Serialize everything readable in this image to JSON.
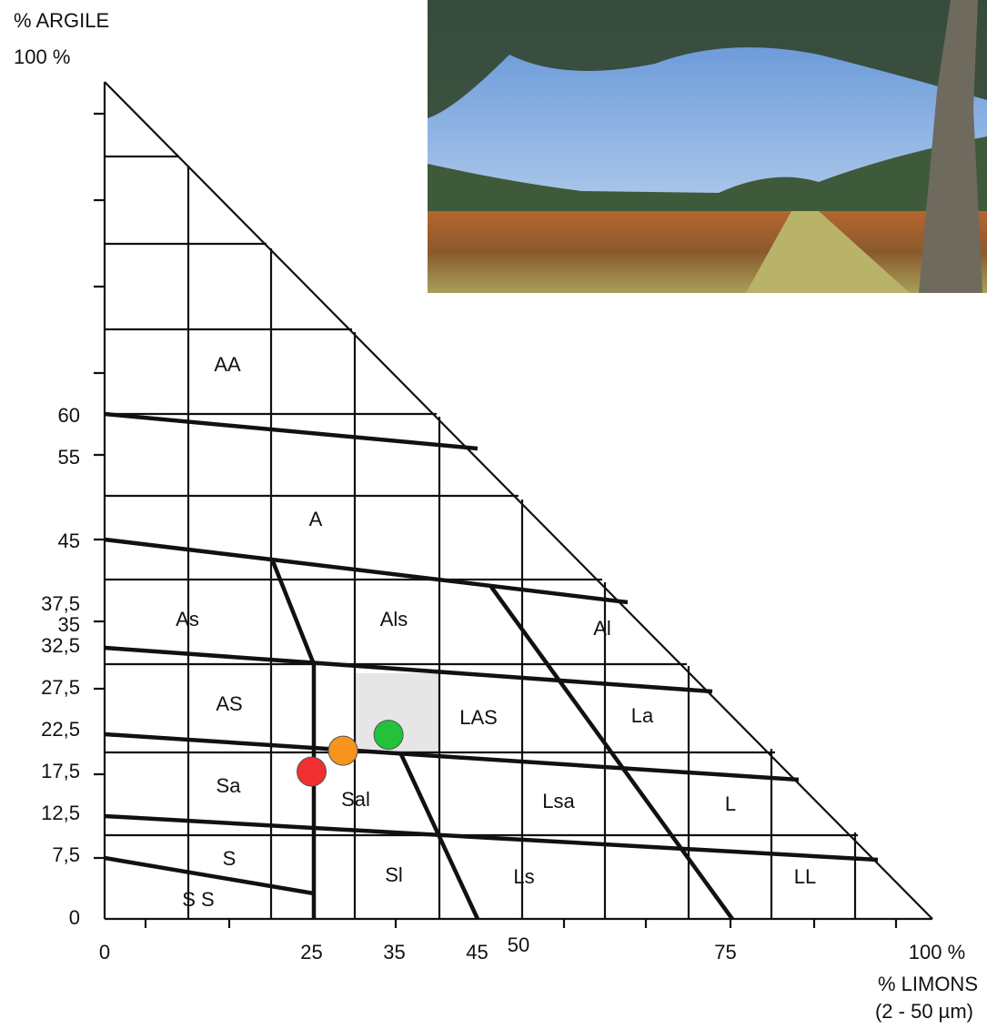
{
  "y_axis": {
    "title": "% ARGILE",
    "top_label": "100 %",
    "ticks": [
      60,
      55,
      45,
      {
        "value": 37.5,
        "label": "37,5"
      },
      35,
      {
        "value": 32.5,
        "label": "32,5"
      },
      {
        "value": 27.5,
        "label": "27,5"
      },
      {
        "value": 22.5,
        "label": "22,5"
      },
      {
        "value": 17.5,
        "label": "17,5"
      },
      {
        "value": 12.5,
        "label": "12,5"
      },
      {
        "value": 7.5,
        "label": "7,5"
      },
      0
    ]
  },
  "x_axis": {
    "title": "% LIMONS",
    "subtitle": "(2 - 50 µm)",
    "ticks": [
      0,
      25,
      35,
      45,
      50,
      75,
      {
        "value": 100,
        "label": "100 %"
      }
    ]
  },
  "zones": [
    "AA",
    "A",
    "As",
    "Als",
    "Al",
    "AS",
    "LAS",
    "La",
    "Sa",
    "Sal",
    "Lsa",
    "L",
    "S",
    "Sl",
    "Ls",
    "LL",
    "S S"
  ],
  "points": [
    {
      "x": 25,
      "y": 17.6,
      "color": "#f03030"
    },
    {
      "x": 28.8,
      "y": 20.1,
      "color": "#f7941d"
    },
    {
      "x": 34.3,
      "y": 22,
      "color": "#22c33a"
    }
  ]
}
